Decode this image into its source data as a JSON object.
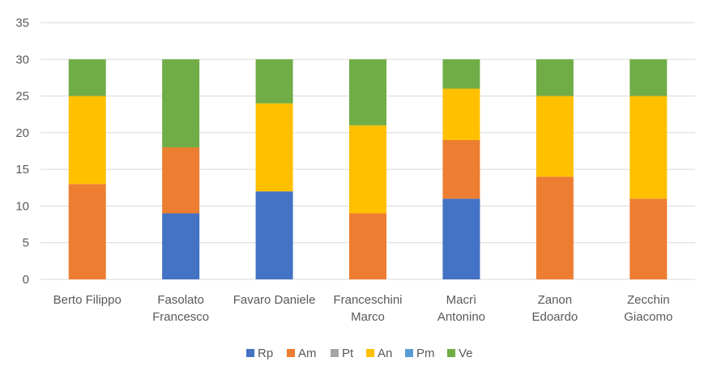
{
  "chart_data": {
    "type": "bar",
    "stacked": true,
    "title": "",
    "xlabel": "",
    "ylabel": "",
    "ylim": [
      0,
      35
    ],
    "yticks": [
      0,
      5,
      10,
      15,
      20,
      25,
      30,
      35
    ],
    "grid": true,
    "legend_position": "bottom",
    "categories": [
      [
        "Berto Filippo"
      ],
      [
        "Fasolato",
        "Francesco"
      ],
      [
        "Favaro Daniele"
      ],
      [
        "Franceschini",
        "Marco"
      ],
      [
        "Macrì",
        "Antonino"
      ],
      [
        "Zanon",
        "Edoardo"
      ],
      [
        "Zecchin",
        "Giacomo"
      ]
    ],
    "series": [
      {
        "name": "Rp",
        "color": "#4472C4",
        "values": [
          0,
          9,
          12,
          0,
          11,
          0,
          0
        ]
      },
      {
        "name": "Am",
        "color": "#ED7D31",
        "values": [
          13,
          9,
          0,
          9,
          8,
          14,
          11
        ]
      },
      {
        "name": "Pt",
        "color": "#A5A5A5",
        "values": [
          0,
          0,
          0,
          0,
          0,
          0,
          0
        ]
      },
      {
        "name": "An",
        "color": "#FFC000",
        "values": [
          12,
          0,
          12,
          12,
          7,
          11,
          14
        ]
      },
      {
        "name": "Pm",
        "color": "#5B9BD5",
        "values": [
          0,
          0,
          0,
          0,
          0,
          0,
          0
        ]
      },
      {
        "name": "Ve",
        "color": "#70AD47",
        "values": [
          5,
          12,
          6,
          9,
          4,
          5,
          5
        ]
      }
    ]
  }
}
